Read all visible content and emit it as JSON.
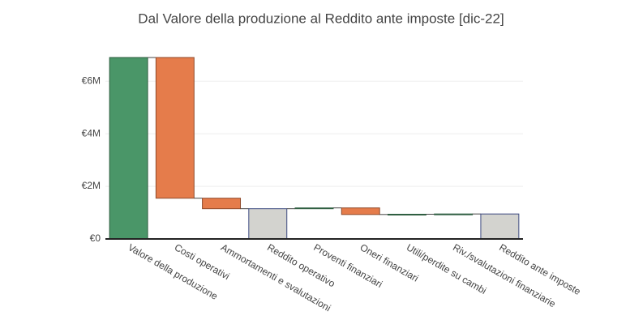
{
  "chart_data": {
    "type": "waterfall",
    "title": "Dal Valore della produzione al Reddito ante imposte [dic-22]",
    "categories": [
      "Valore della produzione",
      "Costi operativi",
      "Ammortamenti e svalutazioni",
      "Reddito operativo",
      "Proventi finanziari",
      "Oneri finanziari",
      "Utili/perdite su cambi",
      "Riv./svalutazioni finanziarie",
      "Reddito ante imposte"
    ],
    "values": [
      6900000,
      -5350000,
      -400000,
      1150000,
      30000,
      -250000,
      10000,
      10000,
      950000
    ],
    "measure": [
      "relative",
      "relative",
      "relative",
      "total",
      "relative",
      "relative",
      "relative",
      "relative",
      "total"
    ],
    "colors": {
      "increasing": "#4a9668",
      "decreasing": "#e57c4b",
      "total": "#d3d3cf"
    },
    "border_colors": {
      "increasing": "#2e5e40",
      "decreasing": "#8f4a2a",
      "total": "#3d4a80"
    },
    "ylim": [
      0,
      7300000
    ],
    "yticks": [
      {
        "value": 0,
        "label": "€0"
      },
      {
        "value": 2000000,
        "label": "€2M"
      },
      {
        "value": 4000000,
        "label": "€4M"
      },
      {
        "value": 6000000,
        "label": "€6M"
      }
    ],
    "grid": true
  }
}
